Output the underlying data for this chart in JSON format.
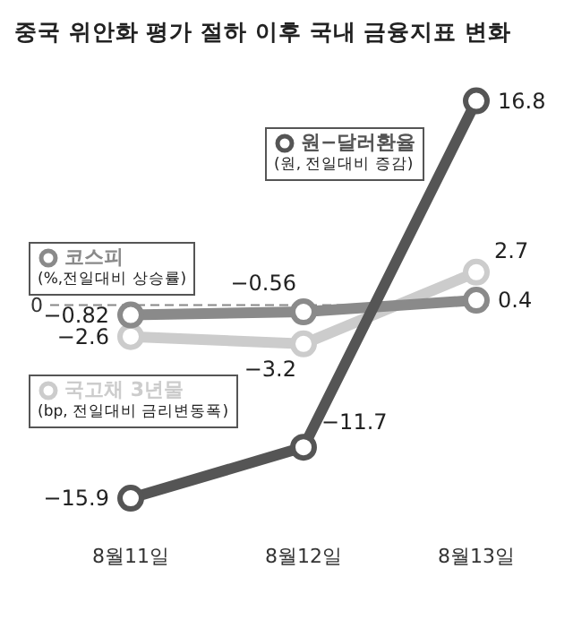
{
  "chart_data": {
    "type": "line",
    "title": "중국 위안화 평가 절하 이후 국내 금융지표 변화",
    "categories": [
      "8월11일",
      "8월12일",
      "8월13일"
    ],
    "series": [
      {
        "name": "국고채 3년물",
        "color": "#cccccc",
        "values": [
          -2.6,
          -3.2,
          2.7
        ]
      },
      {
        "name": "코스피",
        "color": "#8a8a8a",
        "values": [
          -0.82,
          -0.56,
          0.4
        ]
      },
      {
        "name": "원−달러환율",
        "color": "#555555",
        "values": [
          -15.9,
          -11.7,
          16.8
        ]
      }
    ],
    "annotations": [
      "(bp, 전일대비 금리변동폭)",
      "(%,전일대비 상승률)",
      "(원, 전일대비 증감)"
    ],
    "ref_lines": [
      {
        "axis": "y",
        "value": 0,
        "label": "0",
        "color": "#888888",
        "line_style": "dashed"
      }
    ],
    "data_labels": true,
    "marker": "circle",
    "line_style": "solid",
    "legend": "left",
    "grid": false
  }
}
